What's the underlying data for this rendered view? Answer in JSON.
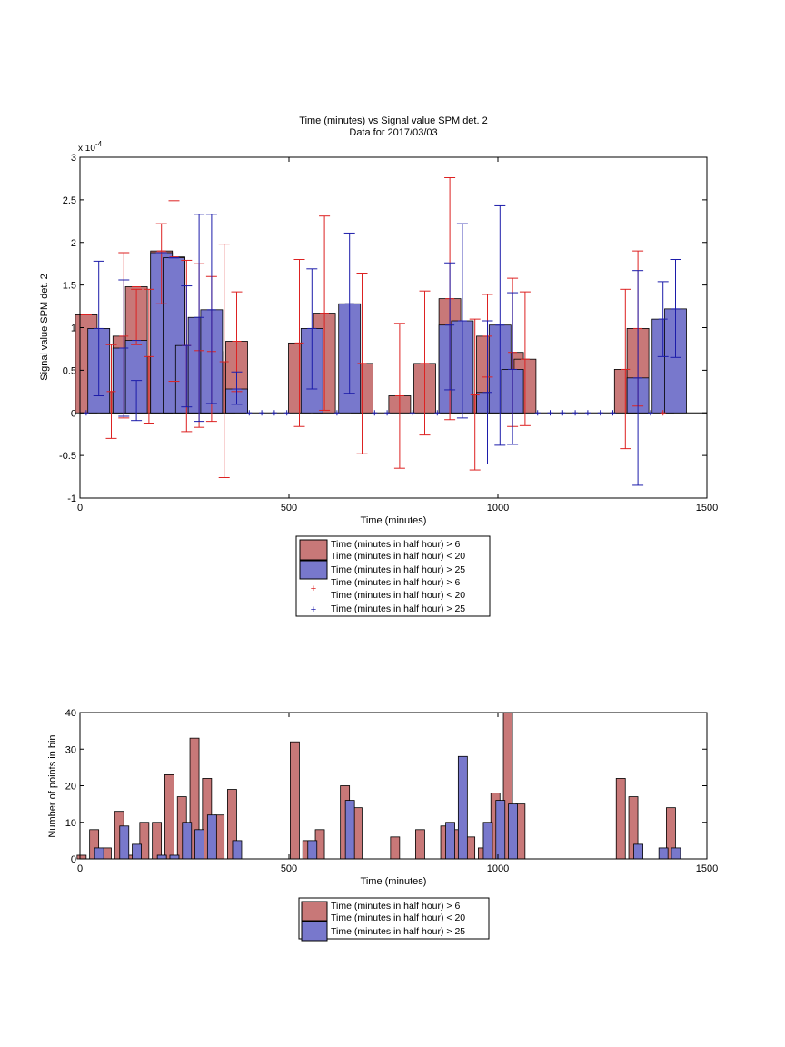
{
  "chart_data": [
    {
      "type": "bar",
      "title": "Time (minutes) vs Signal value SPM det. 2",
      "subtitle": "Data for 2017/03/03",
      "xlabel": "Time (minutes)",
      "ylabel": "Signal value SPM det. 2",
      "y_exponent_label": "x 10",
      "y_exponent_power": "-4",
      "xlim": [
        0,
        1500
      ],
      "ylim": [
        -1,
        3
      ],
      "x_ticks": [
        "0",
        "500",
        "1000",
        "1500"
      ],
      "y_ticks": [
        "-1",
        "-0.5",
        "0",
        "0.5",
        "1",
        "1.5",
        "2",
        "2.5",
        "3"
      ],
      "grid": false,
      "legend_position": "below",
      "legend": [
        {
          "label_line1": "Time (minutes in half hour) > 6",
          "label_line2": "Time (minutes in half hour) < 20",
          "swatch": "bar",
          "color": "#c87878"
        },
        {
          "label_line1": "Time (minutes in half hour) > 25",
          "swatch": "bar",
          "color": "#7878cc"
        },
        {
          "label_line1": "Time (minutes in half hour) > 6",
          "label_line2": "Time (minutes in half hour) < 20",
          "swatch": "plus",
          "color": "#dd2222"
        },
        {
          "label_line1": "Time (minutes in half hour) > 25",
          "swatch": "plus",
          "color": "#1c1caa"
        }
      ],
      "series": [
        {
          "color": "#c87878",
          "err_color": "#dd2222",
          "bar_width": 24,
          "x": [
            15,
            75,
            105,
            135,
            165,
            195,
            225,
            255,
            285,
            315,
            345,
            375,
            525,
            585,
            675,
            765,
            825,
            885,
            945,
            975,
            1035,
            1065,
            1305,
            1335
          ],
          "values": [
            1.15,
            0.25,
            0.9,
            1.48,
            0.66,
            1.9,
            1.83,
            0.79,
            0.73,
            0.72,
            0.6,
            0.84,
            0.82,
            1.17,
            0.58,
            0.2,
            0.58,
            1.34,
            0.21,
            0.9,
            0.71,
            0.63,
            0.51,
            0.99
          ],
          "err_low": [
            1.15,
            -0.3,
            -0.06,
            0.8,
            -0.12,
            1.28,
            0.37,
            -0.22,
            -0.17,
            -0.1,
            -0.76,
            0.25,
            -0.16,
            0.03,
            -0.48,
            -0.65,
            -0.26,
            -0.08,
            -0.67,
            0.42,
            -0.16,
            -0.15,
            -0.42,
            0.08
          ],
          "err_high": [
            1.15,
            0.8,
            1.88,
            1.45,
            1.45,
            2.22,
            2.49,
            1.79,
            1.75,
            1.6,
            1.98,
            1.42,
            1.8,
            2.31,
            1.64,
            1.05,
            1.43,
            2.76,
            1.1,
            1.39,
            1.58,
            1.42,
            1.45,
            1.9
          ]
        },
        {
          "color": "#7878cc",
          "err_color": "#1c1caa",
          "bar_width": 24,
          "x": [
            45,
            105,
            135,
            195,
            225,
            255,
            285,
            315,
            375,
            555,
            645,
            885,
            915,
            975,
            1005,
            1035,
            1335,
            1395,
            1425
          ],
          "values": [
            0.99,
            0.76,
            0.85,
            1.88,
            1.82,
            0.79,
            1.12,
            1.21,
            0.28,
            0.99,
            1.28,
            1.03,
            1.08,
            0.24,
            1.03,
            0.51,
            0.41,
            1.1,
            1.22
          ],
          "err_low": [
            0.2,
            -0.04,
            -0.09,
            1.88,
            1.82,
            0.07,
            -0.1,
            0.11,
            0.1,
            0.28,
            0.23,
            0.27,
            -0.06,
            -0.6,
            -0.38,
            -0.37,
            -0.85,
            0.66,
            0.65
          ],
          "err_high": [
            1.78,
            1.56,
            0.38,
            1.88,
            1.82,
            1.49,
            2.33,
            2.33,
            0.48,
            1.69,
            2.11,
            1.76,
            2.22,
            1.08,
            2.43,
            1.41,
            1.67,
            1.54,
            1.8
          ]
        }
      ],
      "zero_markers": [
        {
          "color": "#1c1caa",
          "x": [
            15,
            405,
            435,
            465,
            495,
            615,
            705,
            735,
            795,
            855,
            1095,
            1125,
            1155,
            1185,
            1215,
            1245,
            1275,
            1365
          ]
        },
        {
          "color": "#dd2222",
          "x": [
            1395
          ]
        }
      ]
    },
    {
      "type": "bar",
      "title": "",
      "xlabel": "Time (minutes)",
      "ylabel": "Number of points in bin",
      "xlim": [
        0,
        1500
      ],
      "ylim": [
        0,
        40
      ],
      "x_ticks": [
        "0",
        "500",
        "1000",
        "1500"
      ],
      "y_ticks": [
        "0",
        "10",
        "20",
        "30",
        "40"
      ],
      "grid": false,
      "legend_position": "below",
      "legend": [
        {
          "label_line1": "Time (minutes in half hour) > 6",
          "label_line2": "Time (minutes in half hour) < 20",
          "swatch": "bar",
          "color": "#c87878"
        },
        {
          "label_line1": "Time (minutes in half hour) > 25",
          "swatch": "bar",
          "color": "#7878cc"
        }
      ],
      "series": [
        {
          "color": "#c87878",
          "bar_width": 10,
          "x": [
            4,
            34,
            64,
            94,
            124,
            154,
            184,
            214,
            244,
            274,
            304,
            334,
            364,
            514,
            544,
            574,
            634,
            664,
            754,
            814,
            874,
            904,
            934,
            964,
            994,
            1024,
            1054,
            1294,
            1324,
            1414
          ],
          "values": [
            1,
            8,
            3,
            13,
            1,
            10,
            10,
            23,
            17,
            33,
            22,
            12,
            19,
            32,
            5,
            8,
            20,
            14,
            6,
            8,
            9,
            8,
            6,
            3,
            18,
            40,
            15,
            22,
            17,
            14
          ]
        },
        {
          "color": "#7878cc",
          "bar_width": 10,
          "x": [
            46,
            106,
            136,
            196,
            226,
            256,
            286,
            316,
            376,
            556,
            646,
            886,
            916,
            976,
            1006,
            1036,
            1336,
            1396,
            1426
          ],
          "values": [
            3,
            9,
            4,
            1,
            1,
            10,
            8,
            12,
            5,
            5,
            16,
            10,
            28,
            10,
            16,
            15,
            4,
            3,
            3
          ]
        }
      ]
    }
  ]
}
